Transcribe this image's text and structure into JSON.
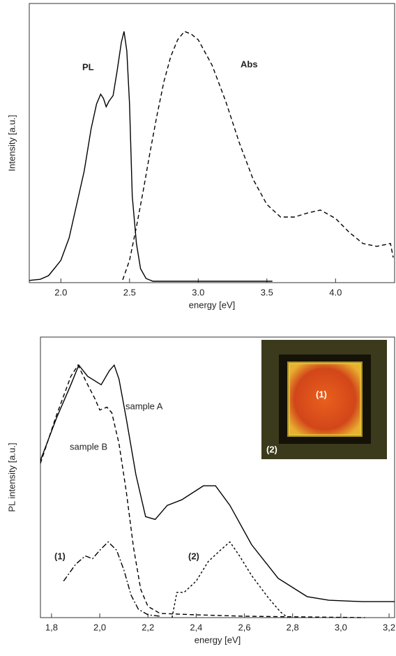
{
  "chart_data": [
    {
      "type": "line",
      "x_label": "energy [eV]",
      "y_label": "Intensity [a.u.]",
      "xlim": [
        1.77,
        4.43
      ],
      "ylim": [
        0,
        1
      ],
      "xticks": [
        {
          "value": 2,
          "label": "2.0"
        },
        2.5,
        {
          "value": 3,
          "label": "3.0"
        },
        3.5,
        {
          "value": 4,
          "label": "4.0"
        }
      ],
      "series": [
        {
          "name": "PL",
          "color": "#000000",
          "dash": "solid",
          "x": [
            1.77,
            1.85,
            1.91,
            1.96,
            2.0,
            2.06,
            2.12,
            2.17,
            2.22,
            2.26,
            2.29,
            2.31,
            2.33,
            2.35,
            2.38,
            2.41,
            2.44,
            2.46,
            2.48,
            2.5,
            2.52,
            2.55,
            2.58,
            2.62,
            2.67,
            3.0,
            3.54
          ],
          "values": [
            0.008,
            0.012,
            0.025,
            0.055,
            0.08,
            0.16,
            0.29,
            0.4,
            0.55,
            0.64,
            0.675,
            0.66,
            0.63,
            0.65,
            0.67,
            0.76,
            0.86,
            0.9,
            0.83,
            0.64,
            0.31,
            0.14,
            0.05,
            0.015,
            0.005,
            0.005,
            0.005
          ]
        },
        {
          "name": "Abs",
          "color": "#000000",
          "dash": "dashed",
          "x": [
            2.45,
            2.5,
            2.55,
            2.6,
            2.65,
            2.7,
            2.75,
            2.8,
            2.85,
            2.9,
            2.95,
            3.0,
            3.1,
            3.2,
            3.3,
            3.4,
            3.5,
            3.6,
            3.7,
            3.8,
            3.89,
            4.0,
            4.1,
            4.2,
            4.3,
            4.4,
            4.42
          ],
          "values": [
            0.01,
            0.08,
            0.2,
            0.33,
            0.47,
            0.6,
            0.72,
            0.81,
            0.87,
            0.9,
            0.89,
            0.87,
            0.78,
            0.65,
            0.5,
            0.37,
            0.28,
            0.235,
            0.235,
            0.25,
            0.26,
            0.23,
            0.18,
            0.14,
            0.13,
            0.14,
            0.09
          ]
        }
      ]
    },
    {
      "type": "line",
      "x_label": "energy [eV]",
      "y_label": "PL intensity [a.u.]",
      "xlim": [
        1.754,
        3.223
      ],
      "ylim": [
        0,
        1
      ],
      "xticks": [
        {
          "value": 1.8,
          "label": "1,8"
        },
        {
          "value": 2.0,
          "label": "2,0"
        },
        {
          "value": 2.2,
          "label": "2,2"
        },
        {
          "value": 2.4,
          "label": "2,4"
        },
        {
          "value": 2.6,
          "label": "2,6"
        },
        {
          "value": 2.8,
          "label": "2,8"
        },
        {
          "value": 3.0,
          "label": "3,0"
        },
        {
          "value": 3.2,
          "label": "3,2"
        }
      ],
      "inset_labels": [
        "(1)",
        "(2)"
      ],
      "series": [
        {
          "name": "sample A",
          "color": "#000000",
          "dash": "solid",
          "x": [
            1.754,
            1.82,
            1.88,
            1.913,
            1.95,
            2.006,
            2.04,
            2.06,
            2.08,
            2.11,
            2.15,
            2.19,
            2.23,
            2.28,
            2.34,
            2.43,
            2.48,
            2.54,
            2.63,
            2.74,
            2.86,
            2.95,
            3.09,
            3.223
          ],
          "values": [
            0.56,
            0.71,
            0.83,
            0.9,
            0.86,
            0.83,
            0.88,
            0.9,
            0.85,
            0.71,
            0.51,
            0.36,
            0.35,
            0.4,
            0.42,
            0.47,
            0.47,
            0.4,
            0.26,
            0.14,
            0.075,
            0.062,
            0.057,
            0.057
          ]
        },
        {
          "name": "sample B",
          "color": "#000000",
          "dash": "dashed",
          "x": [
            1.754,
            1.82,
            1.88,
            1.91,
            1.95,
            1.98,
            2.0,
            2.03,
            2.05,
            2.08,
            2.11,
            2.14,
            2.17,
            2.2,
            2.25,
            2.4,
            2.6,
            3.1
          ],
          "values": [
            0.55,
            0.72,
            0.86,
            0.9,
            0.83,
            0.78,
            0.74,
            0.75,
            0.73,
            0.62,
            0.45,
            0.25,
            0.1,
            0.04,
            0.015,
            0.01,
            0.005,
            0.0
          ]
        },
        {
          "name": "(1)",
          "color": "#000000",
          "dash": "dashdot",
          "x": [
            1.85,
            1.9,
            1.94,
            1.97,
            2.0,
            2.035,
            2.07,
            2.1,
            2.13,
            2.16,
            2.2,
            2.25
          ],
          "values": [
            0.13,
            0.19,
            0.22,
            0.21,
            0.24,
            0.27,
            0.24,
            0.17,
            0.08,
            0.03,
            0.01,
            0.005
          ]
        },
        {
          "name": "(2)",
          "color": "#000000",
          "dash": "dotted",
          "x": [
            2.3,
            2.32,
            2.35,
            2.4,
            2.45,
            2.5,
            2.54,
            2.58,
            2.63,
            2.7,
            2.75,
            2.78
          ],
          "values": [
            0.0,
            0.09,
            0.09,
            0.13,
            0.2,
            0.24,
            0.27,
            0.22,
            0.15,
            0.07,
            0.02,
            0.0
          ]
        }
      ]
    }
  ]
}
